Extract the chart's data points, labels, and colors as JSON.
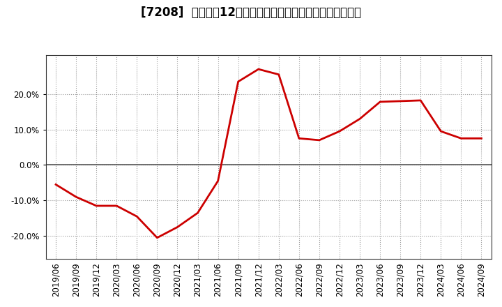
{
  "title": "[7208]  売上高の12か月移動合計の対前年同期増減率の推移",
  "x_labels": [
    "2019/06",
    "2019/09",
    "2019/12",
    "2020/03",
    "2020/06",
    "2020/09",
    "2020/12",
    "2021/03",
    "2021/06",
    "2021/09",
    "2021/12",
    "2022/03",
    "2022/06",
    "2022/09",
    "2022/12",
    "2023/03",
    "2023/06",
    "2023/09",
    "2023/12",
    "2024/03",
    "2024/06",
    "2024/09"
  ],
  "y_values": [
    -0.055,
    -0.09,
    -0.115,
    -0.115,
    -0.145,
    -0.205,
    -0.175,
    -0.135,
    -0.045,
    0.235,
    0.27,
    0.255,
    0.075,
    0.07,
    0.095,
    0.13,
    0.178,
    0.18,
    0.182,
    0.095,
    0.075,
    0.075
  ],
  "line_color": "#cc0000",
  "line_width": 2.0,
  "bg_color": "#ffffff",
  "plot_bg_color": "#ffffff",
  "grid_color": "#999999",
  "zero_line_color": "#555555",
  "yticks": [
    -0.2,
    -0.1,
    0.0,
    0.1,
    0.2
  ],
  "ylim": [
    -0.265,
    0.31
  ],
  "title_fontsize": 12,
  "tick_fontsize": 8.5
}
